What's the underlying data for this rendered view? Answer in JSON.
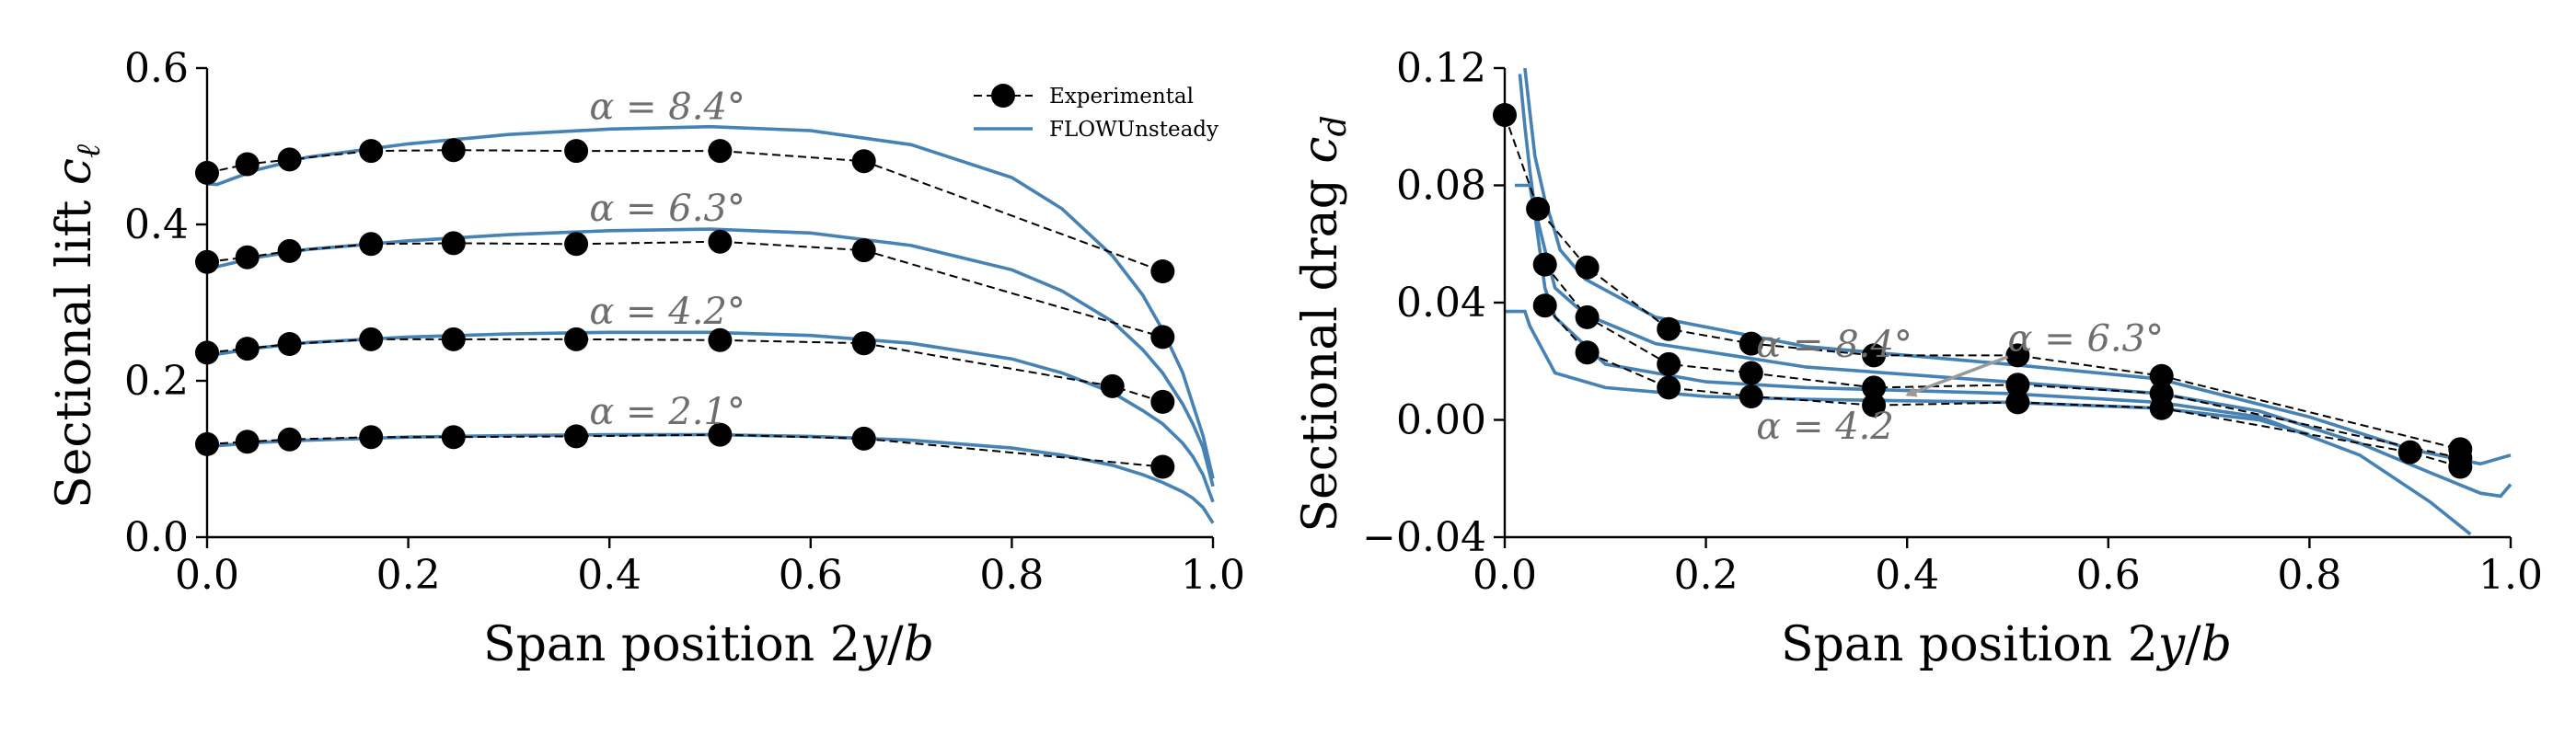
{
  "colors": {
    "simulation": "#4682b4",
    "experimental": "#000000",
    "annotation": "#6e6e6e"
  },
  "chart_data": [
    {
      "type": "line",
      "xlabel": "Span position 2y/b",
      "ylabel": "Sectional lift cℓ",
      "xlim": [
        0.0,
        1.0
      ],
      "ylim": [
        0.0,
        0.6
      ],
      "xticks": [
        "0.0",
        "0.2",
        "0.4",
        "0.6",
        "0.8",
        "1.0"
      ],
      "yticks": [
        "0.0",
        "0.2",
        "0.4",
        "0.6"
      ],
      "xtick_values": [
        0.0,
        0.2,
        0.4,
        0.6,
        0.8,
        1.0
      ],
      "ytick_values": [
        0.0,
        0.2,
        0.4,
        0.6
      ],
      "grid": false,
      "legend": {
        "placement": "top-right",
        "entries": [
          {
            "label": "Experimental",
            "style": "dashed-markers"
          },
          {
            "label": "FLOWUnsteady",
            "style": "solid"
          }
        ]
      },
      "annotations": [
        {
          "text": "α = 8.4°",
          "x": 0.38,
          "y": 0.535
        },
        {
          "text": "α = 6.3°",
          "x": 0.38,
          "y": 0.405
        },
        {
          "text": "α = 4.2°",
          "x": 0.38,
          "y": 0.273
        },
        {
          "text": "α = 2.1°",
          "x": 0.38,
          "y": 0.145
        }
      ],
      "series": [
        {
          "kind": "experimental",
          "x": [
            0.0,
            0.04,
            0.082,
            0.163,
            0.245,
            0.367,
            0.51,
            0.653,
            0.95
          ],
          "y": [
            0.466,
            0.477,
            0.483,
            0.494,
            0.495,
            0.494,
            0.494,
            0.481,
            0.34
          ]
        },
        {
          "kind": "experimental",
          "x": [
            0.0,
            0.04,
            0.082,
            0.163,
            0.245,
            0.367,
            0.51,
            0.653,
            0.95
          ],
          "y": [
            0.352,
            0.358,
            0.366,
            0.375,
            0.376,
            0.375,
            0.378,
            0.367,
            0.256
          ]
        },
        {
          "kind": "experimental",
          "x": [
            0.0,
            0.04,
            0.082,
            0.163,
            0.245,
            0.367,
            0.51,
            0.653,
            0.9,
            0.95
          ],
          "y": [
            0.236,
            0.241,
            0.247,
            0.253,
            0.253,
            0.253,
            0.252,
            0.248,
            0.193,
            0.173
          ]
        },
        {
          "kind": "experimental",
          "x": [
            0.0,
            0.04,
            0.082,
            0.163,
            0.245,
            0.367,
            0.51,
            0.653,
            0.95
          ],
          "y": [
            0.119,
            0.122,
            0.125,
            0.128,
            0.128,
            0.129,
            0.131,
            0.126,
            0.09
          ]
        },
        {
          "kind": "simulation",
          "x": [
            0.0,
            0.01,
            0.02,
            0.05,
            0.1,
            0.2,
            0.3,
            0.4,
            0.5,
            0.6,
            0.7,
            0.8,
            0.85,
            0.9,
            0.93,
            0.95,
            0.97,
            0.98,
            0.99,
            1.0
          ],
          "y": [
            0.452,
            0.451,
            0.456,
            0.47,
            0.486,
            0.503,
            0.515,
            0.522,
            0.525,
            0.52,
            0.502,
            0.46,
            0.42,
            0.36,
            0.31,
            0.265,
            0.21,
            0.17,
            0.13,
            0.075
          ]
        },
        {
          "kind": "simulation",
          "x": [
            0.0,
            0.05,
            0.1,
            0.2,
            0.3,
            0.4,
            0.5,
            0.6,
            0.7,
            0.8,
            0.85,
            0.9,
            0.93,
            0.95,
            0.97,
            0.98,
            0.99,
            1.0
          ],
          "y": [
            0.343,
            0.358,
            0.368,
            0.379,
            0.387,
            0.392,
            0.394,
            0.389,
            0.373,
            0.342,
            0.315,
            0.276,
            0.24,
            0.21,
            0.17,
            0.145,
            0.115,
            0.065
          ]
        },
        {
          "kind": "simulation",
          "x": [
            0.0,
            0.05,
            0.1,
            0.2,
            0.3,
            0.4,
            0.5,
            0.6,
            0.7,
            0.8,
            0.85,
            0.9,
            0.93,
            0.95,
            0.97,
            0.98,
            0.99,
            1.0
          ],
          "y": [
            0.232,
            0.242,
            0.249,
            0.256,
            0.26,
            0.262,
            0.262,
            0.258,
            0.248,
            0.228,
            0.21,
            0.185,
            0.162,
            0.145,
            0.12,
            0.103,
            0.08,
            0.045
          ]
        },
        {
          "kind": "simulation",
          "x": [
            0.0,
            0.05,
            0.1,
            0.2,
            0.3,
            0.4,
            0.5,
            0.6,
            0.7,
            0.8,
            0.85,
            0.9,
            0.93,
            0.95,
            0.97,
            0.98,
            0.99,
            1.0
          ],
          "y": [
            0.116,
            0.121,
            0.124,
            0.128,
            0.13,
            0.131,
            0.131,
            0.129,
            0.124,
            0.114,
            0.105,
            0.092,
            0.08,
            0.07,
            0.058,
            0.05,
            0.038,
            0.018
          ]
        }
      ]
    },
    {
      "type": "line",
      "xlabel": "Span position 2y/b",
      "ylabel": "Sectional drag cd",
      "xlim": [
        0.0,
        1.0
      ],
      "ylim": [
        -0.04,
        0.12
      ],
      "xticks": [
        "0.0",
        "0.2",
        "0.4",
        "0.6",
        "0.8",
        "1.0"
      ],
      "yticks": [
        "−0.04",
        "0.00",
        "0.04",
        "0.08",
        "0.12"
      ],
      "xtick_values": [
        0.0,
        0.2,
        0.4,
        0.6,
        0.8,
        1.0
      ],
      "ytick_values": [
        -0.04,
        0.0,
        0.04,
        0.08,
        0.12
      ],
      "grid": false,
      "annotations": [
        {
          "text": "α = 8.4°",
          "x": 0.25,
          "y": 0.0215
        },
        {
          "text": "α = 6.3°",
          "x": 0.5,
          "y": 0.0235
        },
        {
          "text": "α = 4.2",
          "x": 0.25,
          "y": -0.0065
        }
      ],
      "arrow": {
        "from": [
          0.5,
          0.0215
        ],
        "to": [
          0.4,
          0.0085
        ]
      },
      "series": [
        {
          "kind": "experimental",
          "x": [
            0.0,
            0.033,
            0.082,
            0.163,
            0.245,
            0.367,
            0.51,
            0.653,
            0.95
          ],
          "y": [
            0.104,
            0.072,
            0.052,
            0.031,
            0.026,
            0.022,
            0.022,
            0.015,
            -0.01
          ]
        },
        {
          "kind": "experimental",
          "x": [
            0.04,
            0.082,
            0.163,
            0.245,
            0.367,
            0.51,
            0.653,
            0.95
          ],
          "y": [
            0.053,
            0.035,
            0.019,
            0.016,
            0.011,
            0.012,
            0.009,
            -0.013
          ]
        },
        {
          "kind": "experimental",
          "x": [
            0.04,
            0.082,
            0.163,
            0.245,
            0.367,
            0.51,
            0.653,
            0.9,
            0.95
          ],
          "y": [
            0.039,
            0.023,
            0.011,
            0.008,
            0.005,
            0.006,
            0.004,
            -0.011,
            -0.016
          ]
        },
        {
          "kind": "simulation",
          "x": [
            0.02,
            0.025,
            0.03,
            0.04,
            0.05,
            0.055,
            0.08,
            0.15,
            0.3,
            0.5,
            0.65,
            0.8,
            0.9,
            0.97,
            1.0
          ],
          "y": [
            0.12,
            0.105,
            0.09,
            0.075,
            0.064,
            0.058,
            0.048,
            0.035,
            0.025,
            0.019,
            0.014,
            0.001,
            -0.01,
            -0.015,
            -0.012
          ]
        },
        {
          "kind": "simulation",
          "x": [
            0.015,
            0.02,
            0.025,
            0.03,
            0.04,
            0.05,
            0.08,
            0.15,
            0.3,
            0.5,
            0.65,
            0.75,
            0.85,
            0.92,
            0.97,
            0.99,
            1.0
          ],
          "y": [
            0.118,
            0.1,
            0.085,
            0.072,
            0.058,
            0.045,
            0.036,
            0.026,
            0.018,
            0.013,
            0.009,
            0.003,
            -0.008,
            -0.018,
            -0.025,
            -0.026,
            -0.022
          ]
        },
        {
          "kind": "simulation",
          "x": [
            0.01,
            0.025,
            0.03,
            0.04,
            0.05,
            0.1,
            0.2,
            0.3,
            0.5,
            0.65,
            0.75,
            0.85,
            0.92,
            0.96
          ],
          "y": [
            0.08,
            0.08,
            0.07,
            0.045,
            0.035,
            0.019,
            0.013,
            0.011,
            0.009,
            0.006,
            0.001,
            -0.012,
            -0.028,
            -0.039
          ]
        },
        {
          "kind": "simulation",
          "x": [
            0.0,
            0.02,
            0.025,
            0.05,
            0.1,
            0.2,
            0.3,
            0.5,
            0.65,
            0.75,
            0.8
          ],
          "y": [
            0.037,
            0.037,
            0.032,
            0.016,
            0.011,
            0.008,
            0.007,
            0.006,
            0.004,
            0.0,
            -0.005
          ]
        }
      ]
    }
  ]
}
